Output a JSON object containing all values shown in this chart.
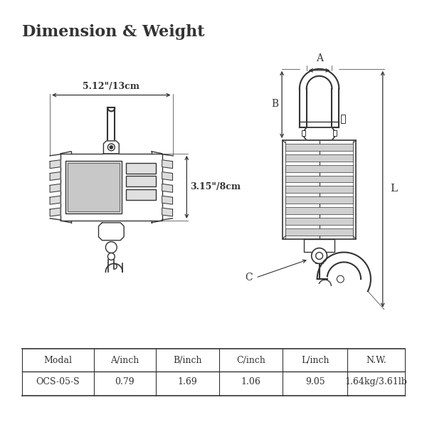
{
  "title": "Dimension & Weight",
  "title_fontsize": 16,
  "background_color": "#ffffff",
  "line_color": "#333333",
  "table_headers": [
    "Modal",
    "A/inch",
    "B/inch",
    "C/inch",
    "L/inch",
    "N.W."
  ],
  "table_row": [
    "OCS-05-S",
    "0.79",
    "1.69",
    "1.06",
    "9.05",
    "1.64kg/3.61lb"
  ],
  "dim_width_label": "5.12\"/13cm",
  "dim_height_label": "3.15\"/8cm",
  "label_A": "A",
  "label_B": "B",
  "label_C": "C",
  "label_L": "L"
}
